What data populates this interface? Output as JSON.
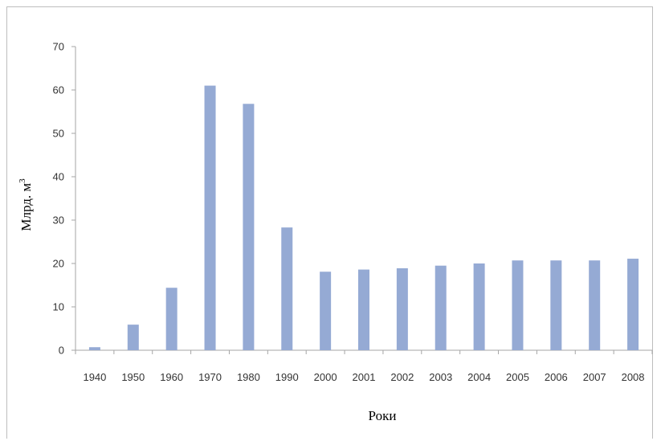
{
  "chart_data": {
    "type": "bar",
    "title": "",
    "xlabel": "Роки",
    "ylabel": "Млрд. м",
    "ylabel_superscript": "3",
    "ylim": [
      0,
      70
    ],
    "yticks": [
      0,
      10,
      20,
      30,
      40,
      50,
      60,
      70
    ],
    "categories": [
      "1940",
      "1950",
      "1960",
      "1970",
      "1980",
      "1990",
      "2000",
      "2001",
      "2002",
      "2003",
      "2004",
      "2005",
      "2006",
      "2007",
      "2008"
    ],
    "series": [
      {
        "values": [
          0.7,
          5.9,
          14.4,
          61.0,
          56.8,
          28.3,
          18.1,
          18.6,
          18.9,
          19.5,
          20.0,
          20.7,
          20.7,
          20.7,
          21.1
        ]
      }
    ],
    "bar_color": "#95aad4",
    "grid": false,
    "legend": "none"
  }
}
